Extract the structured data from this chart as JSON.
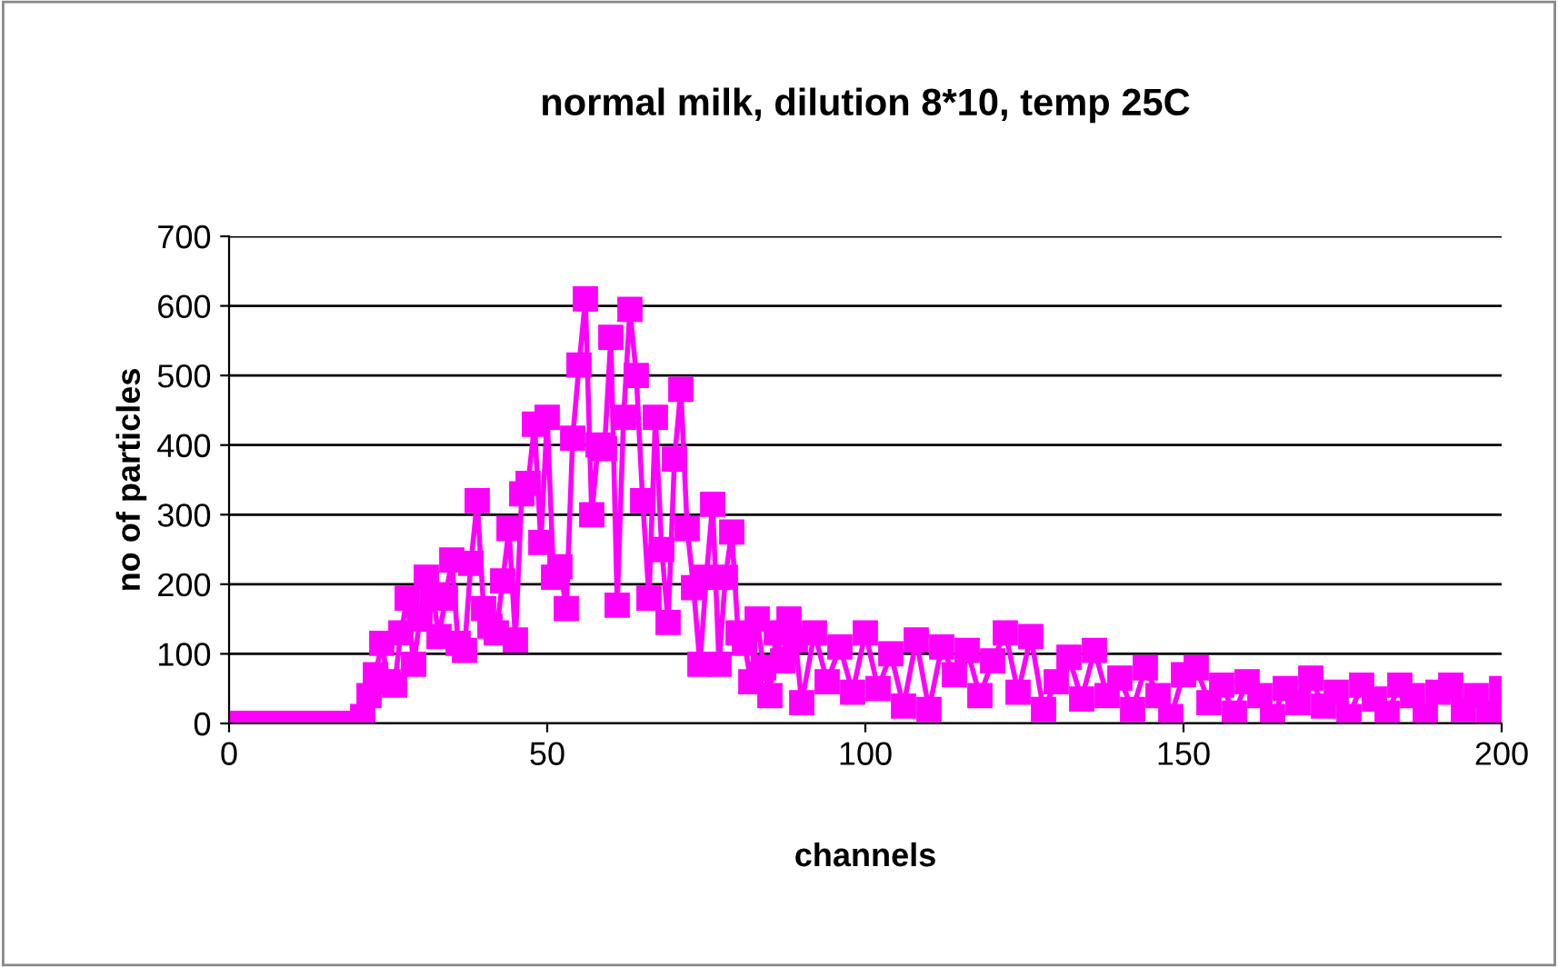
{
  "chart_data": {
    "type": "line",
    "title": "normal milk, dilution 8*10, temp 25C",
    "xlabel": "channels",
    "ylabel": "no of particles",
    "xlim": [
      0,
      200
    ],
    "xticks": [
      0,
      50,
      100,
      150,
      200
    ],
    "ylim": [
      0,
      700
    ],
    "yticks": [
      0,
      100,
      200,
      300,
      400,
      500,
      600,
      700
    ],
    "grid": "y",
    "marker": "square",
    "line_style": "solid",
    "series": [
      {
        "color": "#ff00ff",
        "x": [
          0,
          1,
          2,
          3,
          4,
          5,
          6,
          7,
          8,
          9,
          10,
          11,
          12,
          13,
          14,
          15,
          16,
          17,
          18,
          19,
          20,
          21,
          22,
          23,
          24,
          25,
          26,
          27,
          28,
          29,
          30,
          31,
          32,
          33,
          34,
          35,
          36,
          37,
          38,
          39,
          40,
          41,
          42,
          43,
          44,
          45,
          46,
          47,
          48,
          49,
          50,
          51,
          52,
          53,
          54,
          55,
          56,
          57,
          58,
          59,
          60,
          61,
          62,
          63,
          64,
          65,
          66,
          67,
          68,
          69,
          70,
          71,
          72,
          73,
          74,
          75,
          76,
          77,
          78,
          79,
          80,
          81,
          82,
          83,
          84,
          85,
          86,
          87,
          88,
          89,
          90,
          92,
          94,
          96,
          98,
          100,
          102,
          104,
          106,
          108,
          110,
          112,
          114,
          116,
          118,
          120,
          122,
          124,
          126,
          128,
          130,
          132,
          134,
          136,
          138,
          140,
          142,
          144,
          146,
          148,
          150,
          152,
          154,
          156,
          158,
          160,
          162,
          164,
          166,
          168,
          170,
          172,
          174,
          176,
          178,
          180,
          182,
          184,
          186,
          188,
          190,
          192,
          194,
          196,
          198,
          200
        ],
        "values": [
          0,
          0,
          0,
          0,
          0,
          0,
          0,
          0,
          0,
          0,
          0,
          0,
          0,
          0,
          0,
          0,
          0,
          0,
          0,
          0,
          0,
          10,
          40,
          70,
          115,
          60,
          55,
          130,
          180,
          85,
          150,
          210,
          185,
          125,
          180,
          235,
          115,
          105,
          230,
          320,
          165,
          140,
          130,
          205,
          280,
          120,
          330,
          345,
          430,
          260,
          440,
          210,
          225,
          165,
          410,
          515,
          610,
          300,
          400,
          395,
          555,
          170,
          440,
          595,
          500,
          320,
          180,
          440,
          250,
          145,
          380,
          480,
          280,
          195,
          85,
          210,
          315,
          85,
          210,
          275,
          130,
          115,
          60,
          150,
          80,
          40,
          130,
          90,
          150,
          120,
          30,
          130,
          60,
          110,
          45,
          130,
          50,
          100,
          25,
          120,
          20,
          110,
          70,
          105,
          40,
          90,
          130,
          45,
          125,
          20,
          60,
          95,
          35,
          105,
          40,
          65,
          20,
          80,
          40,
          10,
          70,
          80,
          30,
          55,
          15,
          60,
          40,
          10,
          50,
          30,
          65,
          25,
          45,
          10,
          55,
          35,
          15,
          55,
          40,
          10,
          45,
          55,
          20,
          40,
          15,
          50
        ]
      }
    ]
  }
}
